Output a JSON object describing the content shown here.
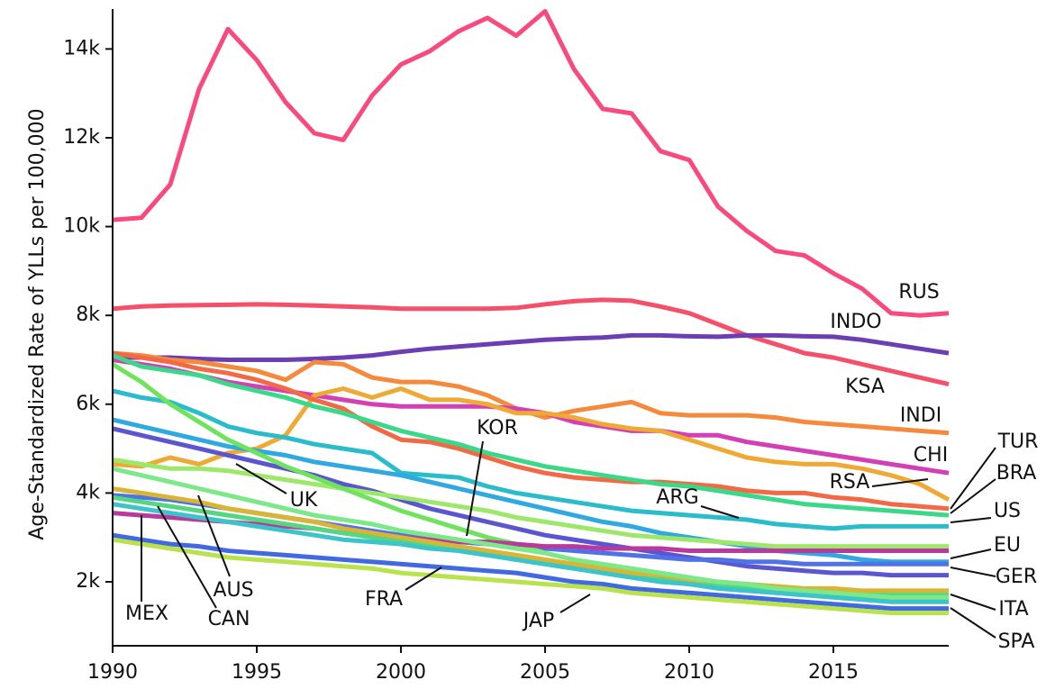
{
  "chart_data": {
    "type": "line",
    "y_label": "Age-Standardized Rate of YLLs per 100,000",
    "x": [
      1990,
      1991,
      1992,
      1993,
      1994,
      1995,
      1996,
      1997,
      1998,
      1999,
      2000,
      2001,
      2002,
      2003,
      2004,
      2005,
      2006,
      2007,
      2008,
      2009,
      2010,
      2011,
      2012,
      2013,
      2014,
      2015,
      2016,
      2017,
      2018,
      2019
    ],
    "xlim": [
      1990,
      2019
    ],
    "xticks": [
      1990,
      1995,
      2000,
      2005,
      2010,
      2015
    ],
    "ylim": [
      560,
      14900
    ],
    "yticks": [
      {
        "value": 2000,
        "label": "2k"
      },
      {
        "value": 4000,
        "label": "4k"
      },
      {
        "value": 6000,
        "label": "6k"
      },
      {
        "value": 8000,
        "label": "8k"
      },
      {
        "value": 10000,
        "label": "10k"
      },
      {
        "value": 12000,
        "label": "12k"
      },
      {
        "value": 14000,
        "label": "14k"
      }
    ],
    "series": [
      {
        "name": "RUS",
        "color": "#f94a7d",
        "values": [
          10150,
          10200,
          10950,
          13100,
          14450,
          13750,
          12800,
          12100,
          11950,
          12950,
          13650,
          13950,
          14400,
          14700,
          14300,
          14850,
          13550,
          12650,
          12550,
          11700,
          11500,
          10450,
          9900,
          9450,
          9350,
          8950,
          8600,
          8050,
          8000,
          8050
        ]
      },
      {
        "name": "KSA",
        "color": "#f4506a",
        "values": [
          8150,
          8200,
          8220,
          8230,
          8240,
          8250,
          8240,
          8220,
          8200,
          8180,
          8150,
          8150,
          8150,
          8150,
          8170,
          8250,
          8320,
          8350,
          8330,
          8200,
          8050,
          7800,
          7550,
          7350,
          7150,
          7050,
          6900,
          6750,
          6600,
          6450
        ]
      },
      {
        "name": "INDO",
        "color": "#6b3fb2",
        "values": [
          7050,
          7050,
          7050,
          7020,
          7000,
          7000,
          7000,
          7020,
          7050,
          7100,
          7180,
          7250,
          7300,
          7350,
          7400,
          7450,
          7480,
          7500,
          7550,
          7550,
          7530,
          7520,
          7550,
          7550,
          7530,
          7520,
          7450,
          7350,
          7250,
          7150
        ]
      },
      {
        "name": "INDI",
        "color": "#f58a3c",
        "values": [
          7150,
          7100,
          7000,
          6950,
          6850,
          6750,
          6550,
          6950,
          6900,
          6600,
          6500,
          6500,
          6400,
          6200,
          5900,
          5700,
          5850,
          5950,
          6050,
          5800,
          5750,
          5750,
          5750,
          5700,
          5600,
          5550,
          5500,
          5450,
          5400,
          5350
        ]
      },
      {
        "name": "CHI",
        "color": "#d33fb5",
        "values": [
          7000,
          6900,
          6800,
          6650,
          6500,
          6400,
          6300,
          6200,
          6100,
          6000,
          5950,
          5950,
          5950,
          5950,
          5900,
          5800,
          5600,
          5500,
          5400,
          5400,
          5300,
          5300,
          5150,
          5050,
          4950,
          4850,
          4750,
          4650,
          4550,
          4450
        ]
      },
      {
        "name": "RSA",
        "color": "#eeaa35",
        "values": [
          4650,
          4600,
          4800,
          4650,
          4900,
          5000,
          5300,
          6200,
          6350,
          6150,
          6350,
          6100,
          6100,
          6000,
          5800,
          5800,
          5700,
          5550,
          5450,
          5400,
          5200,
          5000,
          4800,
          4700,
          4650,
          4650,
          4550,
          4400,
          4200,
          3850
        ]
      },
      {
        "name": "TUR",
        "color": "#f26a45",
        "values": [
          7150,
          7050,
          6950,
          6800,
          6700,
          6550,
          6350,
          6100,
          5900,
          5500,
          5200,
          5150,
          5000,
          4800,
          4600,
          4450,
          4350,
          4300,
          4250,
          4250,
          4200,
          4150,
          4050,
          4000,
          4000,
          3900,
          3850,
          3750,
          3700,
          3650
        ]
      },
      {
        "name": "BRA",
        "color": "#3bd88a",
        "values": [
          7100,
          6850,
          6750,
          6650,
          6450,
          6300,
          6150,
          5950,
          5800,
          5600,
          5400,
          5250,
          5100,
          4900,
          4750,
          4600,
          4500,
          4400,
          4300,
          4200,
          4150,
          4050,
          3950,
          3850,
          3750,
          3700,
          3650,
          3600,
          3550,
          3500
        ]
      },
      {
        "name": "ARG",
        "color": "#2bbccc",
        "values": [
          6300,
          6150,
          6050,
          5800,
          5500,
          5350,
          5250,
          5100,
          5000,
          4900,
          4450,
          4400,
          4350,
          4150,
          4000,
          3900,
          3800,
          3700,
          3600,
          3550,
          3500,
          3450,
          3400,
          3300,
          3250,
          3200,
          3250,
          3250,
          3250,
          3250
        ]
      },
      {
        "name": "US",
        "color": "#30a8e0",
        "values": [
          5650,
          5500,
          5350,
          5200,
          5050,
          4950,
          4850,
          4700,
          4600,
          4500,
          4400,
          4250,
          4100,
          3950,
          3800,
          3650,
          3500,
          3350,
          3250,
          3100,
          3000,
          2900,
          2800,
          2700,
          2650,
          2600,
          2500,
          2450,
          2450,
          2450
        ]
      },
      {
        "name": "UK",
        "color": "#5b55d0",
        "values": [
          5450,
          5300,
          5150,
          5000,
          4850,
          4700,
          4550,
          4400,
          4200,
          4050,
          3850,
          3650,
          3500,
          3350,
          3200,
          3050,
          2950,
          2850,
          2750,
          2650,
          2550,
          2450,
          2350,
          2300,
          2250,
          2200,
          2200,
          2150,
          2150,
          2150
        ]
      },
      {
        "name": "EU",
        "color": "#9de86a",
        "values": [
          4750,
          4650,
          4550,
          4550,
          4500,
          4400,
          4300,
          4200,
          4100,
          4000,
          3900,
          3800,
          3700,
          3600,
          3450,
          3350,
          3250,
          3150,
          3050,
          3000,
          2950,
          2900,
          2850,
          2800,
          2800,
          2800,
          2800,
          2800,
          2800,
          2800
        ]
      },
      {
        "name": "GER",
        "color": "#4f73e6",
        "values": [
          3950,
          3900,
          3850,
          3750,
          3650,
          3550,
          3450,
          3350,
          3250,
          3150,
          3050,
          2950,
          2900,
          2850,
          2800,
          2750,
          2700,
          2650,
          2600,
          2550,
          2500,
          2500,
          2450,
          2450,
          2400,
          2400,
          2400,
          2400,
          2400,
          2400
        ]
      },
      {
        "name": "KOR",
        "color": "#6fe35e",
        "values": [
          6900,
          6500,
          6000,
          5600,
          5200,
          4900,
          4600,
          4350,
          4100,
          3850,
          3600,
          3400,
          3200,
          3000,
          2850,
          2650,
          2500,
          2350,
          2200,
          2100,
          2000,
          1950,
          1850,
          1800,
          1750,
          1700,
          1650,
          1650,
          1600,
          1600
        ]
      },
      {
        "name": "MEX",
        "color": "#b9399c",
        "values": [
          3550,
          3500,
          3450,
          3400,
          3350,
          3300,
          3250,
          3200,
          3100,
          3050,
          3000,
          2950,
          2900,
          2900,
          2850,
          2800,
          2800,
          2750,
          2750,
          2750,
          2700,
          2700,
          2700,
          2700,
          2700,
          2700,
          2700,
          2700,
          2700,
          2700
        ]
      },
      {
        "name": "AUS",
        "color": "#d9b534",
        "values": [
          4100,
          4000,
          3900,
          3800,
          3650,
          3550,
          3450,
          3350,
          3200,
          3100,
          3000,
          2900,
          2800,
          2700,
          2600,
          2500,
          2400,
          2300,
          2200,
          2150,
          2050,
          2000,
          1950,
          1900,
          1850,
          1850,
          1800,
          1800,
          1800,
          1800
        ]
      },
      {
        "name": "CAN",
        "color": "#55d680",
        "values": [
          3900,
          3800,
          3700,
          3600,
          3500,
          3400,
          3300,
          3200,
          3100,
          3000,
          2900,
          2800,
          2700,
          2600,
          2500,
          2400,
          2300,
          2200,
          2100,
          2050,
          1950,
          1900,
          1850,
          1800,
          1750,
          1750,
          1700,
          1700,
          1700,
          1700
        ]
      },
      {
        "name": "ITA",
        "color": "#7de88a",
        "values": [
          4550,
          4400,
          4250,
          4100,
          3950,
          3800,
          3650,
          3500,
          3400,
          3300,
          3150,
          3050,
          2950,
          2850,
          2750,
          2650,
          2500,
          2400,
          2300,
          2200,
          2100,
          2000,
          1950,
          1850,
          1800,
          1750,
          1700,
          1650,
          1650,
          1650
        ]
      },
      {
        "name": "SPA",
        "color": "#3cc4c8",
        "values": [
          3750,
          3650,
          3550,
          3450,
          3350,
          3250,
          3150,
          3050,
          2950,
          2900,
          2850,
          2750,
          2700,
          2600,
          2500,
          2400,
          2300,
          2200,
          2100,
          2000,
          1950,
          1850,
          1800,
          1750,
          1700,
          1650,
          1600,
          1550,
          1550,
          1550
        ]
      },
      {
        "name": "FRA",
        "color": "#4169e1",
        "values": [
          3050,
          2950,
          2850,
          2800,
          2700,
          2650,
          2600,
          2550,
          2500,
          2450,
          2400,
          2350,
          2300,
          2250,
          2200,
          2100,
          2000,
          1950,
          1850,
          1800,
          1750,
          1700,
          1650,
          1600,
          1550,
          1500,
          1450,
          1400,
          1400,
          1400
        ]
      },
      {
        "name": "JAP",
        "color": "#b8e34c",
        "values": [
          2950,
          2850,
          2750,
          2650,
          2550,
          2500,
          2450,
          2400,
          2350,
          2300,
          2200,
          2150,
          2100,
          2050,
          2000,
          1950,
          1900,
          1850,
          1750,
          1700,
          1650,
          1600,
          1550,
          1500,
          1450,
          1400,
          1350,
          1300,
          1300,
          1300
        ]
      }
    ]
  }
}
